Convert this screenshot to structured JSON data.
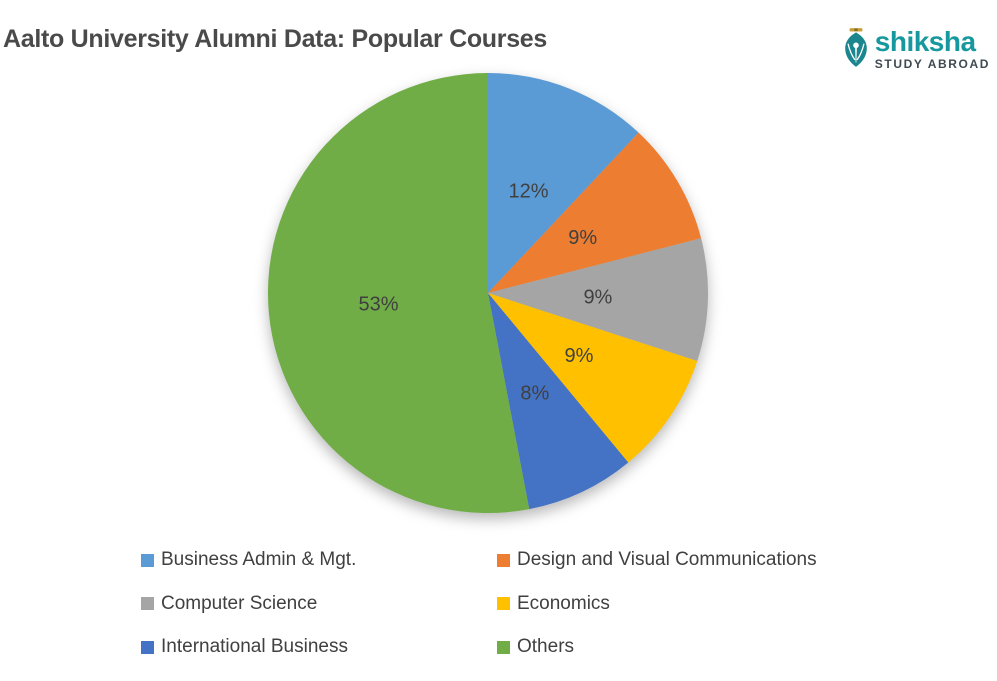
{
  "header": {
    "title": "Aalto University Alumni Data: Popular Courses",
    "logo": {
      "brand": "shiksha",
      "tagline": "STUDY ABROAD",
      "brand_color": "#17989E",
      "tagline_color": "#3E4A52",
      "icon": "pen-nib-icon",
      "icon_color": "#1B868E",
      "icon_accent_color": "#C9A13B"
    }
  },
  "chart_data": {
    "type": "pie",
    "title": "Aalto University Alumni Data: Popular Courses",
    "start_angle_deg": 0,
    "direction": "clockwise",
    "total": 100,
    "slices": [
      {
        "label": "Business Admin & Mgt.",
        "value": 12,
        "display": "12%",
        "color": "#5B9BD5"
      },
      {
        "label": "Design and Visual Communications",
        "value": 9,
        "display": "9%",
        "color": "#ED7D31"
      },
      {
        "label": "Computer Science",
        "value": 9,
        "display": "9%",
        "color": "#A5A5A5"
      },
      {
        "label": "Economics",
        "value": 9,
        "display": "9%",
        "color": "#FFC000"
      },
      {
        "label": "International Business",
        "value": 8,
        "display": "8%",
        "color": "#4472C4"
      },
      {
        "label": "Others",
        "value": 53,
        "display": "53%",
        "color": "#70AD47"
      }
    ],
    "label_color": "#404040",
    "legend_position": "bottom",
    "legend_columns": 2,
    "legend_order": [
      "Business Admin & Mgt.",
      "Design and Visual Communications",
      "Computer Science",
      "Economics",
      "International Business",
      "Others"
    ]
  }
}
